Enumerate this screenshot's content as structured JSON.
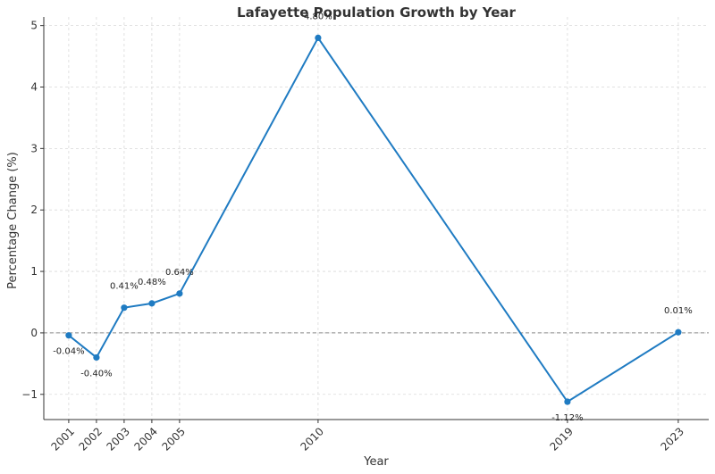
{
  "chart_data": {
    "type": "line",
    "title": "Lafayette Population Growth by Year",
    "xlabel": "Year",
    "ylabel": "Percentage Change (%)",
    "x": [
      2001,
      2002,
      2003,
      2004,
      2005,
      2010,
      2019,
      2023
    ],
    "x_tick_labels": [
      "2001",
      "2002",
      "2003",
      "2004",
      "2005",
      "2010",
      "2019",
      "2023"
    ],
    "series": [
      {
        "name": "Percentage Change",
        "values": [
          -0.04,
          -0.4,
          0.41,
          0.48,
          0.64,
          4.8,
          -1.12,
          0.01
        ],
        "labels": [
          "-0.04%",
          "-0.40%",
          "0.41%",
          "0.48%",
          "0.64%",
          "4.80%",
          "-1.12%",
          "0.01%"
        ],
        "color": "#1f7bc2"
      }
    ],
    "xlim": [
      2000.1,
      2024.1
    ],
    "ylim": [
      -1.41,
      5.14
    ],
    "y_ticks": [
      -1,
      0,
      1,
      2,
      3,
      4,
      5
    ],
    "y_tick_labels": [
      "−1",
      "0",
      "1",
      "2",
      "3",
      "4",
      "5"
    ],
    "grid": true,
    "reference_line": {
      "value": 0,
      "style": "dashed",
      "color": "#8a8a8a"
    }
  }
}
